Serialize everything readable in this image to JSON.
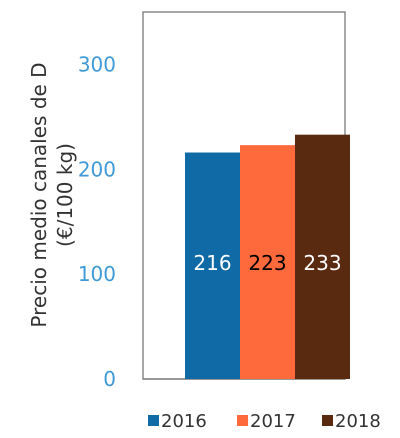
{
  "chart_data": {
    "type": "bar",
    "categories": [
      "2016",
      "2017",
      "2018"
    ],
    "values": [
      216,
      223,
      233
    ],
    "data_labels": [
      "216",
      "223",
      "233"
    ],
    "ylabel_line1": "Precio medio canales de D",
    "ylabel_line2": "(€/100 kg)",
    "xlabel": "",
    "ylim": [
      0,
      350
    ],
    "yticks": [
      0,
      100,
      200,
      300
    ],
    "ytick_labels": [
      "0",
      "100",
      "200",
      "300"
    ],
    "colors": [
      "#0f6aa6",
      "#ff6a3d",
      "#5a2a10"
    ],
    "label_colors": [
      "#ffffff",
      "#000000",
      "#ffffff"
    ],
    "tick_color": "#3f9ad6",
    "grid": false,
    "legend": {
      "position": "bottom",
      "entries": [
        "2016",
        "2017",
        "2018"
      ]
    }
  }
}
